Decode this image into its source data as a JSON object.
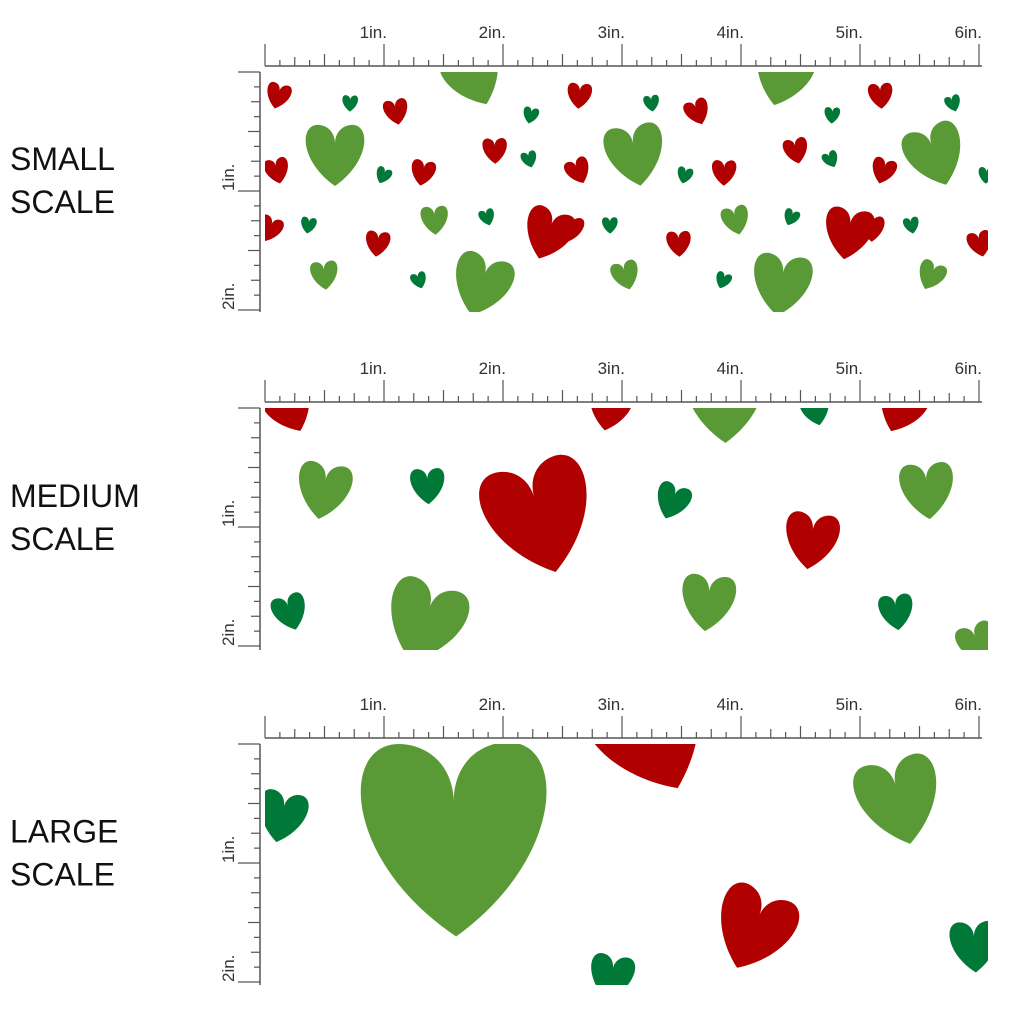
{
  "panels": [
    {
      "label": [
        "SMALL",
        "SCALE"
      ]
    },
    {
      "label": [
        "MEDIUM",
        "SCALE"
      ]
    },
    {
      "label": [
        "LARGE",
        "SCALE"
      ]
    }
  ],
  "ruler": {
    "horizontal": [
      "1in.",
      "2in.",
      "3in.",
      "4in.",
      "5in.",
      "6in."
    ],
    "vertical": [
      "1in.",
      "2in."
    ]
  }
}
